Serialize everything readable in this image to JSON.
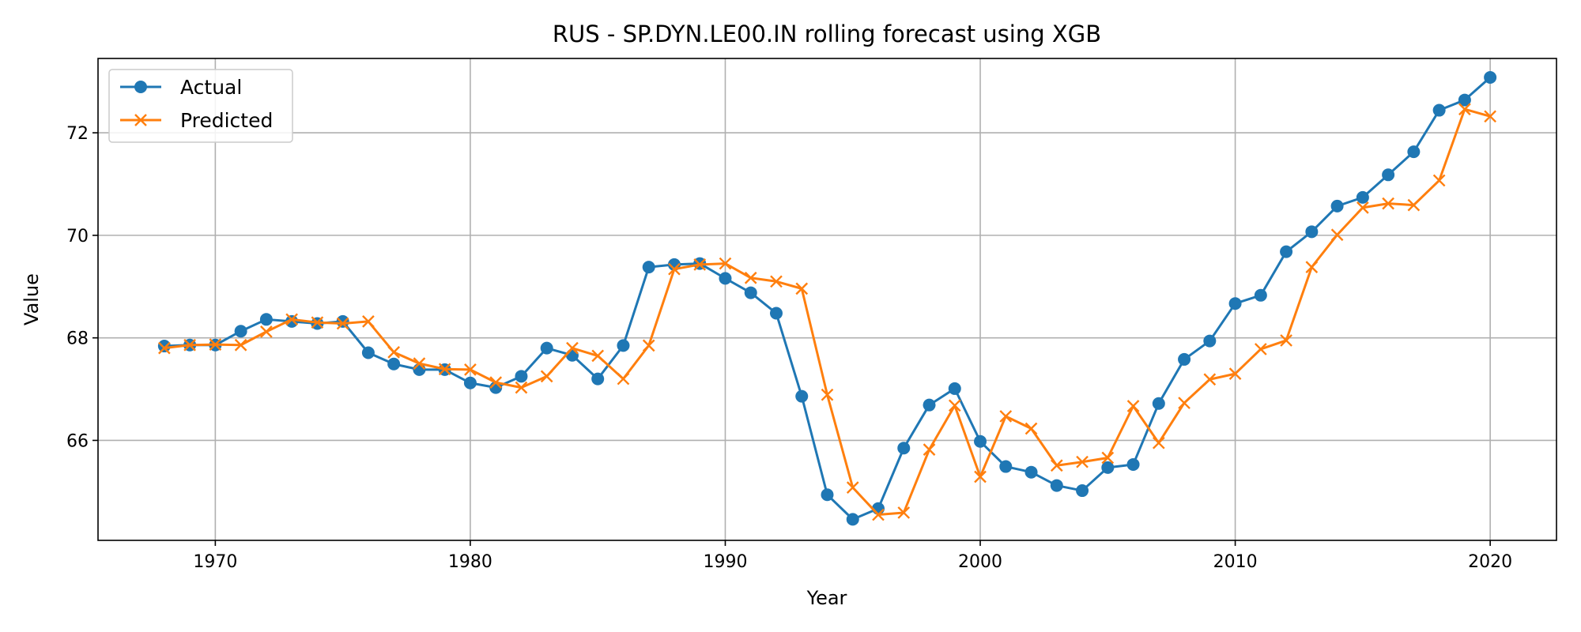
{
  "chart_data": {
    "type": "line",
    "title": "RUS - SP.DYN.LE00.IN rolling forecast using XGB",
    "xlabel": "Year",
    "ylabel": "Value",
    "xlim": [
      1965.4,
      2022.6
    ],
    "ylim": [
      64.05,
      73.45
    ],
    "xticks": [
      1970,
      1980,
      1990,
      2000,
      2010,
      2020
    ],
    "yticks": [
      66,
      68,
      70,
      72
    ],
    "grid": true,
    "legend_position": "top-left",
    "x": [
      1968,
      1969,
      1970,
      1971,
      1972,
      1973,
      1974,
      1975,
      1976,
      1977,
      1978,
      1979,
      1980,
      1981,
      1982,
      1983,
      1984,
      1985,
      1986,
      1987,
      1988,
      1989,
      1990,
      1991,
      1992,
      1993,
      1994,
      1995,
      1996,
      1997,
      1998,
      1999,
      2000,
      2001,
      2002,
      2003,
      2004,
      2005,
      2006,
      2007,
      2008,
      2009,
      2010,
      2011,
      2012,
      2013,
      2014,
      2015,
      2016,
      2017,
      2018,
      2019,
      2020
    ],
    "series": [
      {
        "name": "Actual",
        "color": "#1f77b4",
        "marker": "circle",
        "values": [
          67.84,
          67.86,
          67.86,
          68.13,
          68.36,
          68.32,
          68.28,
          68.32,
          67.71,
          67.49,
          67.38,
          67.38,
          67.12,
          67.03,
          67.25,
          67.8,
          67.66,
          67.2,
          67.85,
          69.38,
          69.43,
          69.45,
          69.16,
          68.88,
          68.48,
          66.86,
          64.94,
          64.46,
          64.67,
          65.85,
          66.69,
          67.01,
          65.98,
          65.49,
          65.38,
          65.12,
          65.02,
          65.47,
          65.53,
          66.72,
          67.58,
          67.94,
          68.67,
          68.83,
          69.68,
          70.07,
          70.57,
          70.74,
          71.18,
          71.63,
          72.44,
          72.64,
          73.08
        ]
      },
      {
        "name": "Predicted",
        "color": "#ff7f0e",
        "marker": "x",
        "values": [
          67.8,
          67.86,
          67.87,
          67.86,
          68.12,
          68.36,
          68.3,
          68.28,
          68.32,
          67.72,
          67.5,
          67.39,
          67.38,
          67.13,
          67.03,
          67.25,
          67.8,
          67.65,
          67.2,
          67.85,
          69.34,
          69.43,
          69.45,
          69.17,
          69.1,
          68.96,
          66.89,
          65.08,
          64.55,
          64.59,
          65.82,
          66.68,
          65.29,
          66.47,
          66.23,
          65.51,
          65.58,
          65.66,
          66.67,
          65.95,
          66.73,
          67.19,
          67.3,
          67.78,
          67.95,
          69.38,
          70.01,
          70.54,
          70.62,
          70.59,
          71.07,
          72.46,
          72.32
        ]
      }
    ]
  }
}
